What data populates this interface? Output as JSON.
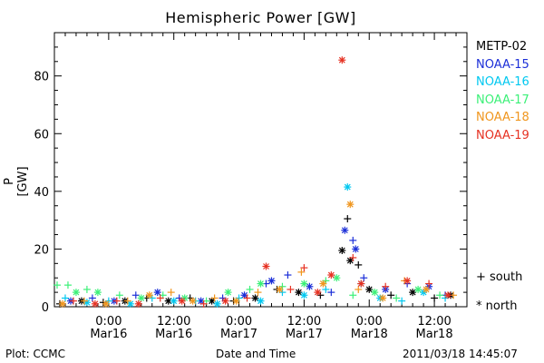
{
  "chart_data": {
    "type": "scatter",
    "title": "Hemispheric Power [GW]",
    "ylabel": "P [GW]",
    "xlabel": "Date and Time",
    "ylim": [
      0,
      95
    ],
    "yticks": [
      0,
      20,
      40,
      60,
      80
    ],
    "xlim": [
      "2011-03-15 14:00",
      "2011-03-18 18:00"
    ],
    "xticks": [
      {
        "t": "2011-03-16 00:00",
        "time": "0:00",
        "date": "Mar16"
      },
      {
        "t": "2011-03-16 12:00",
        "time": "12:00",
        "date": "Mar16"
      },
      {
        "t": "2011-03-17 00:00",
        "time": "0:00",
        "date": "Mar17"
      },
      {
        "t": "2011-03-17 12:00",
        "time": "12:00",
        "date": "Mar17"
      },
      {
        "t": "2011-03-18 00:00",
        "time": "0:00",
        "date": "Mar18"
      },
      {
        "t": "2011-03-18 12:00",
        "time": "12:00",
        "date": "Mar18"
      }
    ],
    "marker_legend": {
      "south": "+  south",
      "north": "*  north"
    },
    "series": [
      {
        "name": "METP-02",
        "color": "#000000",
        "points": [
          [
            "2011-03-15 15:00",
            1,
            "S"
          ],
          [
            "2011-03-15 19:00",
            2,
            "N"
          ],
          [
            "2011-03-15 23:00",
            1.5,
            "S"
          ],
          [
            "2011-03-16 03:00",
            2,
            "N"
          ],
          [
            "2011-03-16 07:00",
            3,
            "S"
          ],
          [
            "2011-03-16 11:00",
            2,
            "N"
          ],
          [
            "2011-03-16 15:00",
            3,
            "S"
          ],
          [
            "2011-03-16 19:00",
            2,
            "N"
          ],
          [
            "2011-03-16 23:00",
            2,
            "S"
          ],
          [
            "2011-03-17 03:00",
            3,
            "N"
          ],
          [
            "2011-03-17 07:00",
            6,
            "S"
          ],
          [
            "2011-03-17 11:00",
            5,
            "N"
          ],
          [
            "2011-03-17 15:00",
            4,
            "S"
          ],
          [
            "2011-03-17 19:00",
            19.5,
            "N"
          ],
          [
            "2011-03-17 20:00",
            30.5,
            "S"
          ],
          [
            "2011-03-17 20:30",
            16,
            "N"
          ],
          [
            "2011-03-17 22:00",
            14.5,
            "S"
          ],
          [
            "2011-03-18 00:00",
            6,
            "N"
          ],
          [
            "2011-03-18 04:00",
            4,
            "S"
          ],
          [
            "2011-03-18 08:00",
            5,
            "N"
          ],
          [
            "2011-03-18 12:00",
            3,
            "S"
          ],
          [
            "2011-03-18 15:00",
            4,
            "N"
          ]
        ]
      },
      {
        "name": "NOAA-15",
        "color": "#1c2fd8",
        "points": [
          [
            "2011-03-15 17:00",
            2,
            "N"
          ],
          [
            "2011-03-15 21:00",
            3,
            "S"
          ],
          [
            "2011-03-16 01:00",
            2,
            "N"
          ],
          [
            "2011-03-16 05:00",
            4,
            "S"
          ],
          [
            "2011-03-16 09:00",
            5,
            "N"
          ],
          [
            "2011-03-16 13:00",
            3,
            "S"
          ],
          [
            "2011-03-16 17:00",
            2,
            "N"
          ],
          [
            "2011-03-16 21:00",
            3,
            "S"
          ],
          [
            "2011-03-17 01:00",
            4,
            "N"
          ],
          [
            "2011-03-17 05:00",
            8,
            "S"
          ],
          [
            "2011-03-17 06:00",
            9,
            "N"
          ],
          [
            "2011-03-17 09:00",
            11,
            "S"
          ],
          [
            "2011-03-17 13:00",
            7,
            "N"
          ],
          [
            "2011-03-17 17:00",
            5,
            "S"
          ],
          [
            "2011-03-17 19:30",
            26.5,
            "N"
          ],
          [
            "2011-03-17 21:00",
            23,
            "S"
          ],
          [
            "2011-03-17 21:30",
            20,
            "N"
          ],
          [
            "2011-03-17 23:00",
            10,
            "S"
          ],
          [
            "2011-03-18 03:00",
            6,
            "N"
          ],
          [
            "2011-03-18 07:00",
            8,
            "S"
          ],
          [
            "2011-03-18 11:00",
            7,
            "N"
          ],
          [
            "2011-03-18 14:00",
            4,
            "S"
          ]
        ]
      },
      {
        "name": "NOAA-16",
        "color": "#00c8f0",
        "points": [
          [
            "2011-03-15 16:00",
            3,
            "S"
          ],
          [
            "2011-03-15 20:00",
            1.5,
            "N"
          ],
          [
            "2011-03-16 00:00",
            2,
            "S"
          ],
          [
            "2011-03-16 04:00",
            1,
            "N"
          ],
          [
            "2011-03-16 08:00",
            3,
            "S"
          ],
          [
            "2011-03-16 12:00",
            2,
            "N"
          ],
          [
            "2011-03-16 16:00",
            2,
            "S"
          ],
          [
            "2011-03-16 20:00",
            1,
            "N"
          ],
          [
            "2011-03-17 00:00",
            3,
            "S"
          ],
          [
            "2011-03-17 04:00",
            2,
            "N"
          ],
          [
            "2011-03-17 08:00",
            5,
            "S"
          ],
          [
            "2011-03-17 12:00",
            4,
            "N"
          ],
          [
            "2011-03-17 16:00",
            6,
            "S"
          ],
          [
            "2011-03-17 20:00",
            41.5,
            "N"
          ],
          [
            "2011-03-17 22:30",
            8,
            "S"
          ],
          [
            "2011-03-18 02:00",
            3,
            "N"
          ],
          [
            "2011-03-18 06:00",
            2,
            "S"
          ],
          [
            "2011-03-18 10:00",
            5,
            "N"
          ],
          [
            "2011-03-18 14:00",
            3,
            "S"
          ]
        ]
      },
      {
        "name": "NOAA-17",
        "color": "#3cf078",
        "points": [
          [
            "2011-03-15 14:30",
            7.5,
            "S"
          ],
          [
            "2011-03-15 16:30",
            7.5,
            "S"
          ],
          [
            "2011-03-15 18:00",
            5,
            "N"
          ],
          [
            "2011-03-15 20:00",
            6,
            "S"
          ],
          [
            "2011-03-15 22:00",
            5,
            "N"
          ],
          [
            "2011-03-16 02:00",
            4,
            "S"
          ],
          [
            "2011-03-16 06:00",
            3,
            "N"
          ],
          [
            "2011-03-16 10:00",
            4,
            "S"
          ],
          [
            "2011-03-16 14:00",
            3,
            "N"
          ],
          [
            "2011-03-16 18:00",
            2,
            "S"
          ],
          [
            "2011-03-16 22:00",
            5,
            "N"
          ],
          [
            "2011-03-17 02:00",
            6,
            "S"
          ],
          [
            "2011-03-17 04:00",
            8,
            "N"
          ],
          [
            "2011-03-17 08:00",
            7,
            "S"
          ],
          [
            "2011-03-17 12:00",
            8,
            "N"
          ],
          [
            "2011-03-17 16:00",
            9,
            "S"
          ],
          [
            "2011-03-17 18:00",
            10,
            "N"
          ],
          [
            "2011-03-17 21:00",
            4,
            "S"
          ],
          [
            "2011-03-18 01:00",
            5,
            "N"
          ],
          [
            "2011-03-18 05:00",
            3,
            "S"
          ],
          [
            "2011-03-18 09:00",
            6,
            "N"
          ],
          [
            "2011-03-18 13:00",
            4,
            "S"
          ]
        ]
      },
      {
        "name": "NOAA-18",
        "color": "#f0961e",
        "points": [
          [
            "2011-03-15 15:30",
            1,
            "N"
          ],
          [
            "2011-03-15 19:30",
            2,
            "S"
          ],
          [
            "2011-03-15 23:30",
            1,
            "N"
          ],
          [
            "2011-03-16 03:30",
            2,
            "S"
          ],
          [
            "2011-03-16 07:30",
            4,
            "N"
          ],
          [
            "2011-03-16 11:30",
            5,
            "S"
          ],
          [
            "2011-03-16 15:30",
            2,
            "N"
          ],
          [
            "2011-03-16 19:30",
            3,
            "S"
          ],
          [
            "2011-03-16 23:30",
            2,
            "N"
          ],
          [
            "2011-03-17 03:30",
            5,
            "S"
          ],
          [
            "2011-03-17 07:30",
            6,
            "N"
          ],
          [
            "2011-03-17 11:30",
            12,
            "S"
          ],
          [
            "2011-03-17 15:30",
            8,
            "N"
          ],
          [
            "2011-03-17 20:30",
            35.5,
            "N"
          ],
          [
            "2011-03-17 22:00",
            6,
            "S"
          ],
          [
            "2011-03-18 02:30",
            3,
            "N"
          ],
          [
            "2011-03-18 06:30",
            9,
            "S"
          ],
          [
            "2011-03-18 10:30",
            6,
            "N"
          ],
          [
            "2011-03-18 15:30",
            4,
            "S"
          ]
        ]
      },
      {
        "name": "NOAA-19",
        "color": "#e63223",
        "points": [
          [
            "2011-03-15 17:30",
            2,
            "S"
          ],
          [
            "2011-03-15 21:30",
            1,
            "N"
          ],
          [
            "2011-03-16 01:30",
            2,
            "S"
          ],
          [
            "2011-03-16 05:30",
            1,
            "N"
          ],
          [
            "2011-03-16 09:30",
            3,
            "S"
          ],
          [
            "2011-03-16 13:30",
            2,
            "N"
          ],
          [
            "2011-03-16 17:30",
            1,
            "S"
          ],
          [
            "2011-03-16 21:30",
            2,
            "N"
          ],
          [
            "2011-03-17 01:30",
            3,
            "S"
          ],
          [
            "2011-03-17 05:00",
            14,
            "N"
          ],
          [
            "2011-03-17 09:30",
            6,
            "S"
          ],
          [
            "2011-03-17 12:00",
            13.5,
            "S"
          ],
          [
            "2011-03-17 14:30",
            5,
            "N"
          ],
          [
            "2011-03-17 17:00",
            11,
            "N"
          ],
          [
            "2011-03-17 19:00",
            85.5,
            "N"
          ],
          [
            "2011-03-17 21:00",
            17,
            "S"
          ],
          [
            "2011-03-17 22:30",
            8,
            "N"
          ],
          [
            "2011-03-18 03:00",
            7,
            "S"
          ],
          [
            "2011-03-18 07:00",
            9,
            "N"
          ],
          [
            "2011-03-18 11:00",
            8,
            "S"
          ],
          [
            "2011-03-18 14:30",
            4,
            "N"
          ]
        ]
      }
    ]
  },
  "footer": {
    "left": "Plot: CCMC",
    "center": "Date and Time",
    "right": "2011/03/18 14:45:07"
  }
}
